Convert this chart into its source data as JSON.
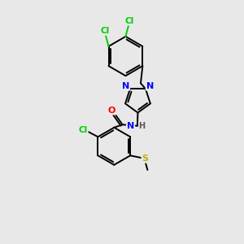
{
  "background_color": "#e8e8e8",
  "bond_color": "#000000",
  "atom_colors": {
    "N": "#0000ff",
    "O": "#ff0000",
    "S": "#ccaa00",
    "Cl": "#00cc00",
    "C": "#000000",
    "H": "#555555"
  },
  "lw": 1.4,
  "dbo": 0.055
}
